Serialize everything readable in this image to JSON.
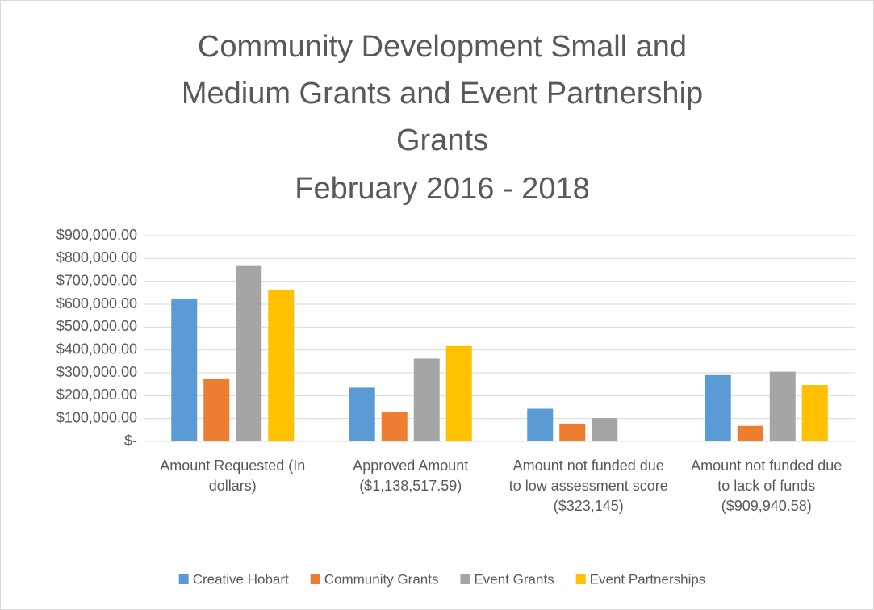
{
  "chart_data": {
    "type": "bar",
    "title": [
      "Community Development Small and",
      "Medium Grants and Event Partnership",
      "Grants"
    ],
    "subtitle": "February 2016 - 2018",
    "categories": [
      "Amount Requested (In dollars)",
      "Approved Amount ($1,138,517.59)",
      "Amount not funded due to low assessment score ($323,145)",
      "Amount not funded due to lack of funds ($909,940.58)"
    ],
    "series": [
      {
        "name": "Creative Hobart",
        "color": "#5b9bd5",
        "values": [
          625000,
          235000,
          143000,
          290000
        ]
      },
      {
        "name": "Community Grants",
        "color": "#ed7d31",
        "values": [
          272000,
          127000,
          78000,
          68000
        ]
      },
      {
        "name": "Event Grants",
        "color": "#a5a5a5",
        "values": [
          767000,
          362000,
          102000,
          305000
        ]
      },
      {
        "name": "Event Partnerships",
        "color": "#ffc000",
        "values": [
          663000,
          417000,
          0,
          247000
        ]
      }
    ],
    "ylim": [
      0,
      900000
    ],
    "yticks": [
      {
        "value": 0,
        "label": "$-"
      },
      {
        "value": 100000,
        "label": "$100,000.00"
      },
      {
        "value": 200000,
        "label": "$200,000.00"
      },
      {
        "value": 300000,
        "label": "$300,000.00"
      },
      {
        "value": 400000,
        "label": "$400,000.00"
      },
      {
        "value": 500000,
        "label": "$500,000.00"
      },
      {
        "value": 600000,
        "label": "$600,000.00"
      },
      {
        "value": 700000,
        "label": "$700,000.00"
      },
      {
        "value": 800000,
        "label": "$800,000.00"
      },
      {
        "value": 900000,
        "label": "$900,000.00"
      }
    ],
    "grid": true,
    "legend": "bottom"
  }
}
